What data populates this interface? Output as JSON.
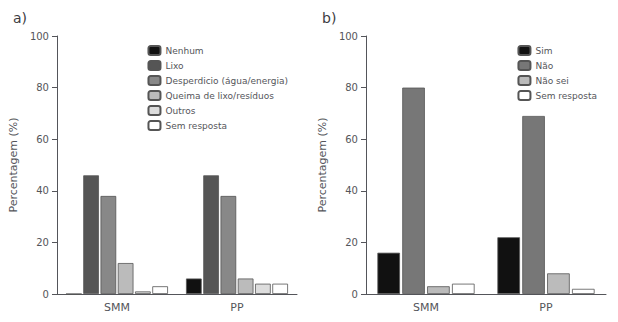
{
  "chart_data": [
    {
      "type": "bar",
      "title": "a)",
      "categories": [
        "SMM",
        "PP"
      ],
      "series": [
        {
          "name": "Nenhum",
          "color": "#111111",
          "values": [
            0,
            6
          ]
        },
        {
          "name": "Lixo",
          "color": "#555555",
          "values": [
            46,
            46
          ]
        },
        {
          "name": "Desperdicio (água/energia)",
          "color": "#888888",
          "values": [
            38,
            38
          ]
        },
        {
          "name": "Queima de lixo/resíduos",
          "color": "#bbbbbb",
          "values": [
            12,
            6
          ]
        },
        {
          "name": "Outros",
          "color": "#dddddd",
          "values": [
            1,
            4
          ]
        },
        {
          "name": "Sem resposta",
          "color": "#ffffff",
          "values": [
            3,
            4
          ]
        }
      ],
      "ylabel": "Percentagem (%)",
      "ylim": [
        0,
        100
      ],
      "yticks": [
        0,
        20,
        40,
        60,
        80,
        100
      ],
      "grid": false,
      "legend": "upper right"
    },
    {
      "type": "bar",
      "title": "b)",
      "categories": [
        "SMM",
        "PP"
      ],
      "series": [
        {
          "name": "Sim",
          "color": "#111111",
          "values": [
            16,
            22
          ]
        },
        {
          "name": "Não",
          "color": "#777777",
          "values": [
            80,
            69
          ]
        },
        {
          "name": "Não sei",
          "color": "#bbbbbb",
          "values": [
            3,
            8
          ]
        },
        {
          "name": "Sem resposta",
          "color": "#ffffff",
          "values": [
            4,
            2
          ]
        }
      ],
      "ylabel": "Percentagem (%)",
      "ylim": [
        0,
        100
      ],
      "yticks": [
        0,
        20,
        40,
        60,
        80,
        100
      ],
      "grid": false,
      "legend": "upper right"
    }
  ]
}
